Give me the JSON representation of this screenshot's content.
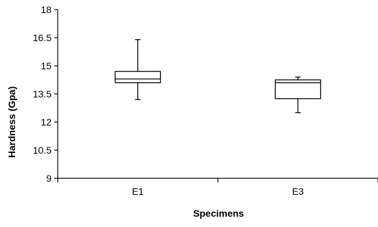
{
  "chart_data": {
    "type": "box",
    "xlabel": "Specimens",
    "ylabel": "Hardness (Gpa)",
    "ylim": [
      9,
      18
    ],
    "yticks": [
      "9",
      "10.5",
      "12",
      "13.5",
      "15",
      "16.5",
      "18"
    ],
    "grid": false,
    "categories": [
      "E1",
      "E3"
    ],
    "boxes": [
      {
        "category": "E1",
        "min": 13.2,
        "q1": 14.1,
        "median": 14.3,
        "q3": 14.7,
        "max": 16.4
      },
      {
        "category": "E3",
        "min": 12.5,
        "q1": 13.25,
        "median": 14.1,
        "q3": 14.25,
        "max": 14.4
      }
    ]
  }
}
